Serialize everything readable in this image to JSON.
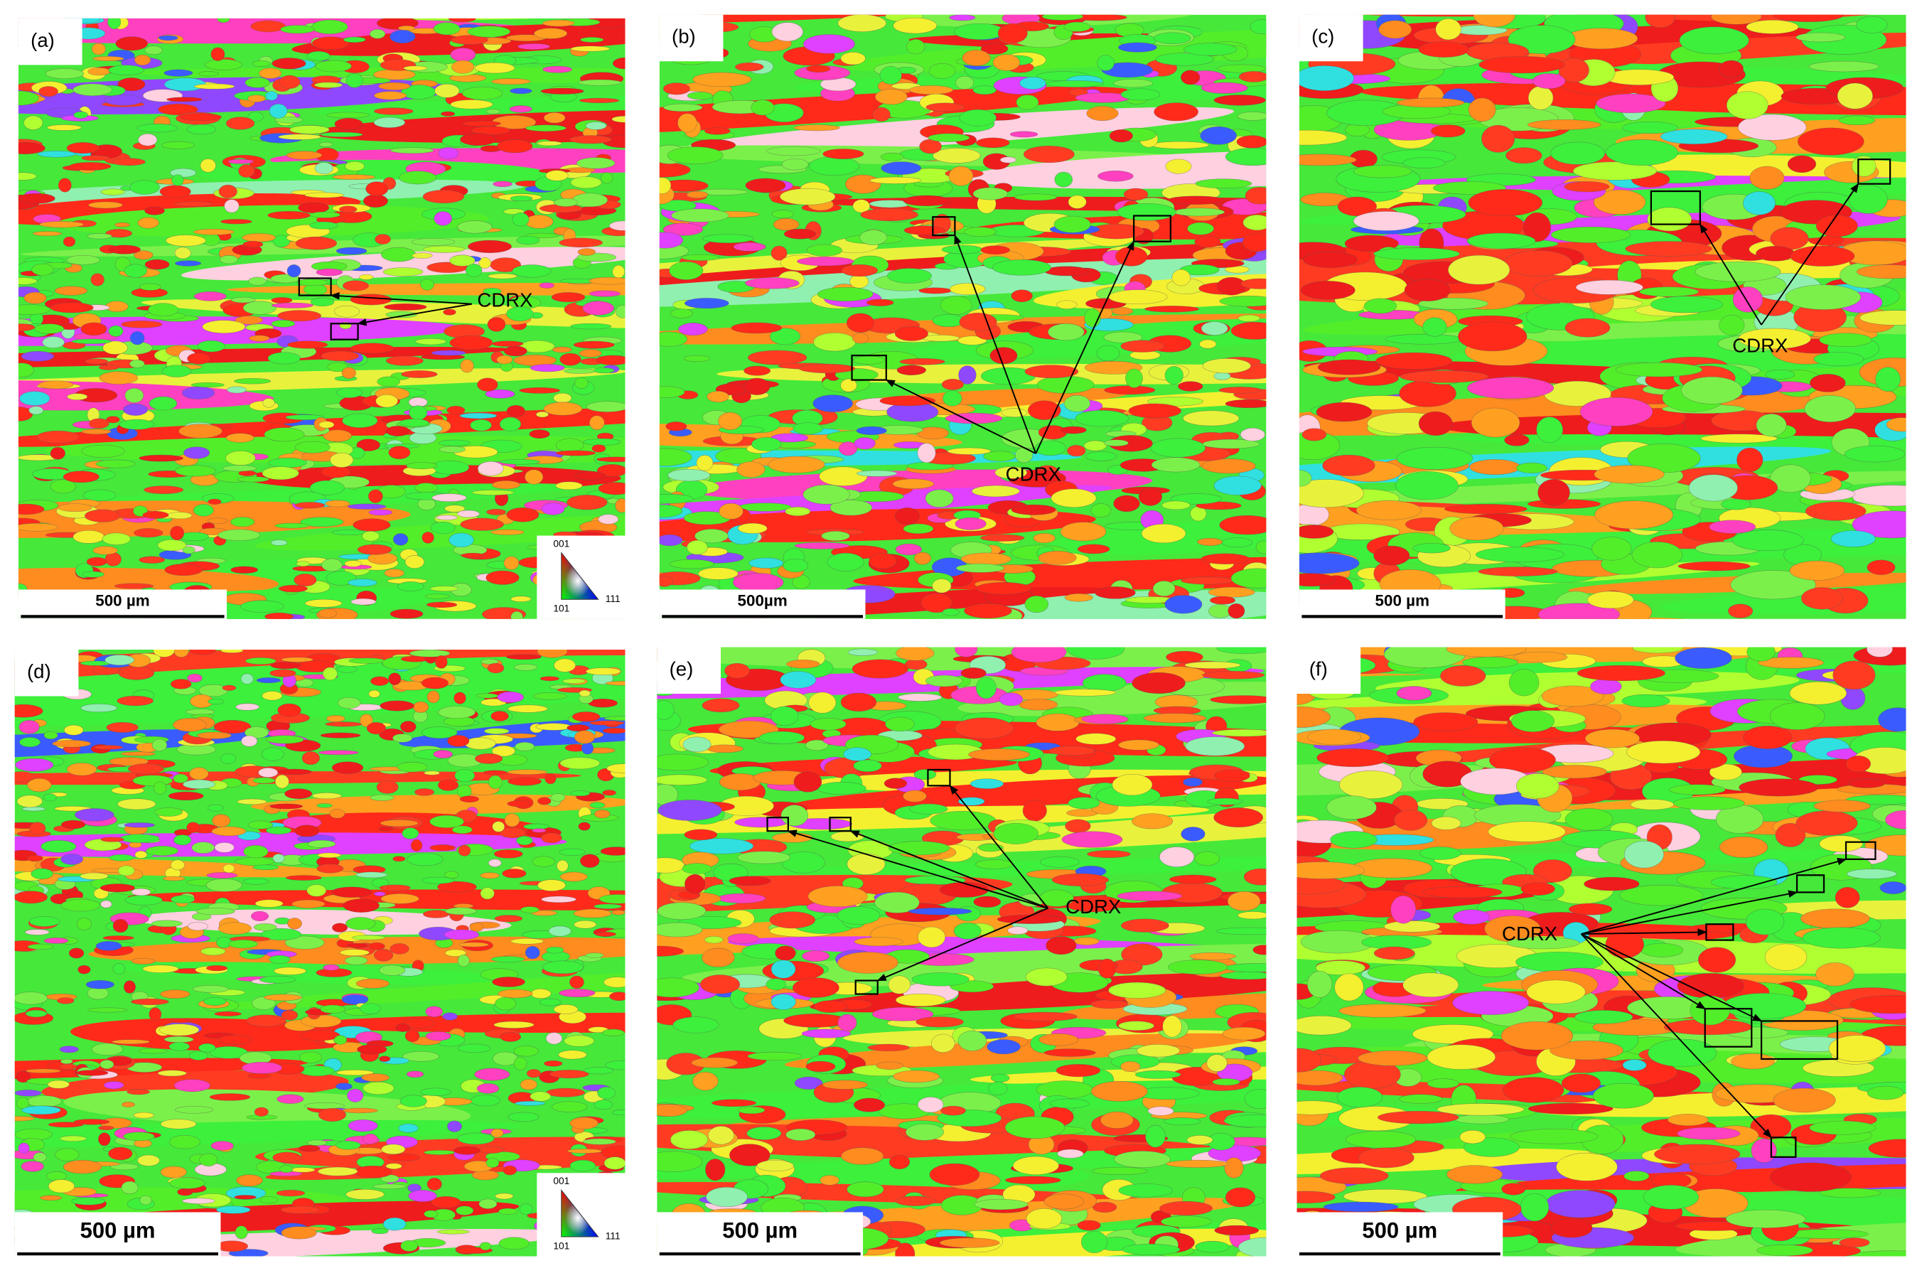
{
  "panels": [
    {
      "label": "(a)",
      "scale_bar": "500 µm",
      "annotation": "CDRX",
      "legend": {
        "top": "001",
        "left": "101",
        "right": "111"
      }
    },
    {
      "label": "(b)",
      "scale_bar": "500µm",
      "annotation": "CDRX"
    },
    {
      "label": "(c)",
      "scale_bar": "500 µm",
      "annotation": "CDRX"
    },
    {
      "label": "(d)",
      "scale_bar": "500 µm",
      "legend": {
        "top": "001",
        "left": "101",
        "right": "111"
      }
    },
    {
      "label": "(e)",
      "scale_bar": "500 µm",
      "annotation": "CDRX"
    },
    {
      "label": "(f)",
      "scale_bar": "500 µm",
      "annotation": "CDRX"
    }
  ]
}
